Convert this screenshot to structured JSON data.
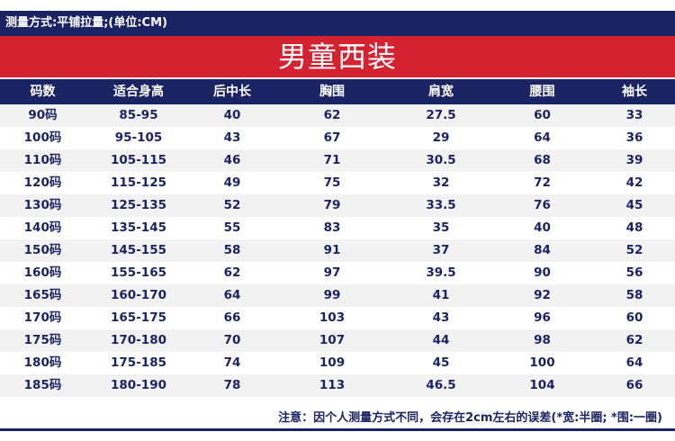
{
  "top_bar": {
    "text": "测量方式:平铺拉量;(单位:CM)"
  },
  "title": "男童西装",
  "table": {
    "headers": [
      "码数",
      "适合身高",
      "后中长",
      "胸围",
      "肩宽",
      "腰围",
      "袖长"
    ],
    "rows": [
      [
        "90码",
        "85-95",
        "40",
        "62",
        "27.5",
        "60",
        "33"
      ],
      [
        "100码",
        "95-105",
        "43",
        "67",
        "29",
        "64",
        "36"
      ],
      [
        "110码",
        "105-115",
        "46",
        "71",
        "30.5",
        "68",
        "39"
      ],
      [
        "120码",
        "115-125",
        "49",
        "75",
        "32",
        "72",
        "42"
      ],
      [
        "130码",
        "125-135",
        "52",
        "79",
        "33.5",
        "76",
        "45"
      ],
      [
        "140码",
        "135-145",
        "55",
        "83",
        "35",
        "40",
        "48"
      ],
      [
        "150码",
        "145-155",
        "58",
        "91",
        "37",
        "84",
        "52"
      ],
      [
        "160码",
        "155-165",
        "62",
        "97",
        "39.5",
        "90",
        "56"
      ],
      [
        "165码",
        "160-170",
        "64",
        "99",
        "41",
        "92",
        "58"
      ],
      [
        "170码",
        "165-175",
        "66",
        "103",
        "43",
        "96",
        "60"
      ],
      [
        "175码",
        "170-180",
        "70",
        "107",
        "44",
        "98",
        "62"
      ],
      [
        "180码",
        "175-185",
        "74",
        "109",
        "45",
        "100",
        "64"
      ],
      [
        "185码",
        "180-190",
        "78",
        "113",
        "46.5",
        "104",
        "66"
      ]
    ]
  },
  "note": "注意：因个人测量方式不同，会存在2cm左右的误差(*宽:半圈; *围:一圈)",
  "colors": {
    "navy": "#1b2462",
    "red": "#d52231",
    "stripe": "#f2f2f2"
  }
}
